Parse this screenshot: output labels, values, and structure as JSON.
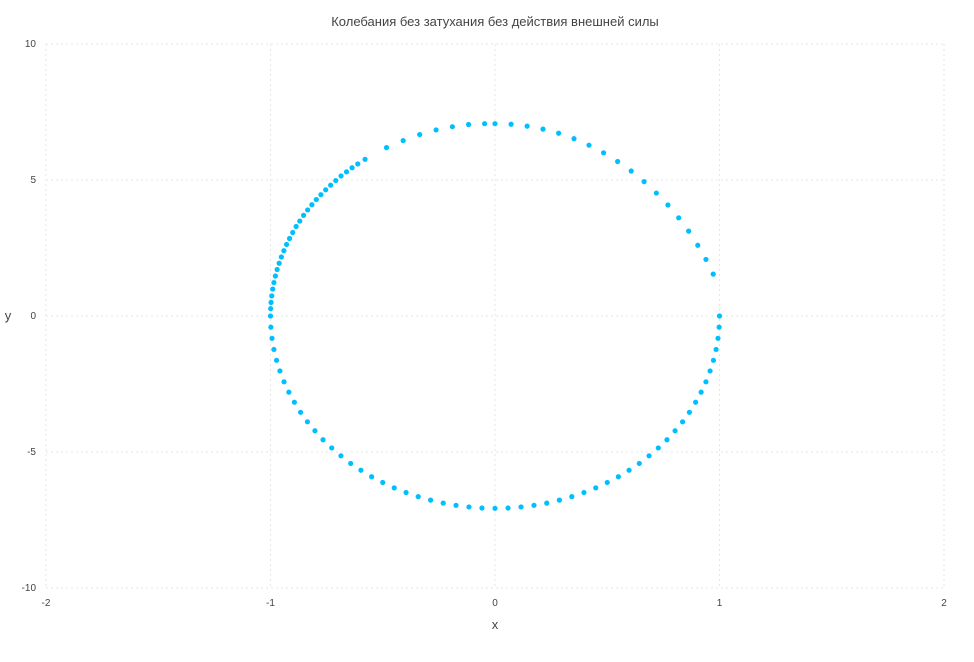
{
  "chart_data": {
    "type": "scatter",
    "title": "Колебания без затухания без действия внешней силы",
    "xlabel": "x",
    "ylabel": "y",
    "xlim": [
      -2,
      2
    ],
    "ylim": [
      -10,
      10
    ],
    "xticks": [
      "-2",
      "-1",
      "0",
      "1",
      "2"
    ],
    "yticks": [
      "10",
      "5",
      "0",
      "-5",
      "-10"
    ],
    "grid": true,
    "legend": "none",
    "marker_color": "#00bfff",
    "series": [
      {
        "x": [
          0.0,
          0.0717,
          0.1431,
          0.2138,
          0.2835,
          0.3519,
          0.4187,
          0.4836,
          0.5463,
          0.6066,
          0.6641,
          0.7187,
          0.7702,
          0.8182,
          0.8626,
          0.9032,
          0.9397,
          0.972,
          1.0,
          0.9983,
          0.9932,
          0.9848,
          0.973,
          0.958,
          0.9397,
          0.9182,
          0.8936,
          0.866,
          0.8355,
          0.8021,
          0.766,
          0.7274,
          0.6862,
          0.6428,
          0.5972,
          0.5495,
          0.5,
          0.4488,
          0.3961,
          0.342,
          0.2868,
          0.2306,
          0.1736,
          0.116,
          0.0581,
          0.0,
          -0.0581,
          -0.116,
          -0.1736,
          -0.2306,
          -0.2868,
          -0.342,
          -0.3961,
          -0.4488,
          -0.5,
          -0.5495,
          -0.5972,
          -0.6428,
          -0.6862,
          -0.7274,
          -0.766,
          -0.8021,
          -0.8355,
          -0.866,
          -0.8936,
          -0.9182,
          -0.9397,
          -0.958,
          -0.973,
          -0.9848,
          -0.9932,
          -0.9983,
          -1.0,
          -0.9993,
          -0.9975,
          -0.9944,
          -0.9902,
          -0.9848,
          -0.9782,
          -0.9704,
          -0.9615,
          -0.9516,
          -0.9405,
          -0.9284,
          -0.9152,
          -0.901,
          -0.8858,
          -0.8696,
          -0.8526,
          -0.8346,
          -0.8157,
          -0.796,
          -0.7754,
          -0.7541,
          -0.732,
          -0.7092,
          -0.6857,
          -0.6615,
          -0.6367,
          -0.6114,
          -0.5788,
          -0.4832,
          -0.4091,
          -0.3355,
          -0.2624,
          -0.1898,
          -0.1177,
          -0.0462
        ],
        "y": [
          7.07,
          7.05,
          6.98,
          6.87,
          6.72,
          6.52,
          6.28,
          6.0,
          5.68,
          5.33,
          4.94,
          4.52,
          4.08,
          3.61,
          3.12,
          2.6,
          2.08,
          1.54,
          0.0,
          -0.41,
          -0.82,
          -1.23,
          -1.63,
          -2.02,
          -2.42,
          -2.8,
          -3.17,
          -3.54,
          -3.89,
          -4.22,
          -4.55,
          -4.85,
          -5.14,
          -5.42,
          -5.67,
          -5.91,
          -6.12,
          -6.32,
          -6.49,
          -6.64,
          -6.77,
          -6.88,
          -6.96,
          -7.02,
          -7.06,
          -7.07,
          -7.06,
          -7.02,
          -6.96,
          -6.88,
          -6.77,
          -6.64,
          -6.49,
          -6.32,
          -6.12,
          -5.91,
          -5.67,
          -5.42,
          -5.14,
          -4.85,
          -4.55,
          -4.22,
          -3.89,
          -3.54,
          -3.17,
          -2.8,
          -2.42,
          -2.02,
          -1.63,
          -1.23,
          -0.82,
          -0.41,
          0.0,
          0.27,
          0.5,
          0.74,
          0.99,
          1.23,
          1.47,
          1.71,
          1.94,
          2.17,
          2.4,
          2.63,
          2.85,
          3.07,
          3.29,
          3.49,
          3.7,
          3.9,
          4.09,
          4.28,
          4.46,
          4.64,
          4.81,
          4.98,
          5.15,
          5.3,
          5.45,
          5.59,
          5.76,
          6.19,
          6.45,
          6.67,
          6.84,
          6.96,
          7.04,
          7.07
        ]
      }
    ]
  }
}
